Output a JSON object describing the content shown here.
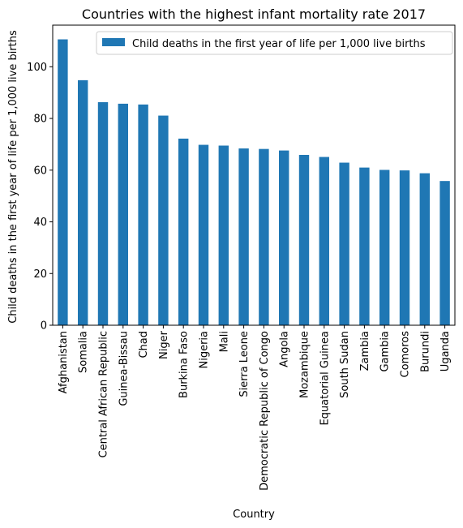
{
  "chart_data": {
    "type": "bar",
    "title": "Countries with the highest infant mortality rate 2017",
    "xlabel": "Country",
    "ylabel": "Child deaths in the first year of life per 1,000 live births",
    "categories": [
      "Afghanistan",
      "Somalia",
      "Central African Republic",
      "Guinea-Bissau",
      "Chad",
      "Niger",
      "Burkina Faso",
      "Nigeria",
      "Mali",
      "Sierra Leone",
      "Democratic Republic of Congo",
      "Angola",
      "Mozambique",
      "Equatorial Guinea",
      "South Sudan",
      "Zambia",
      "Gambia",
      "Comoros",
      "Burundi",
      "Uganda"
    ],
    "series": [
      {
        "name": "Child deaths in the first year of life per 1,000 live births",
        "color": "#1f77b4",
        "values": [
          110.6,
          94.8,
          86.3,
          85.7,
          85.4,
          81.1,
          72.2,
          69.8,
          69.5,
          68.4,
          68.2,
          67.6,
          65.9,
          65.1,
          62.9,
          61.0,
          60.1,
          59.9,
          58.8,
          55.8
        ]
      }
    ],
    "yticks": [
      0,
      20,
      40,
      60,
      80,
      100
    ],
    "ylim": [
      0,
      116.1
    ],
    "grid": false,
    "legend_position": "top-right"
  }
}
